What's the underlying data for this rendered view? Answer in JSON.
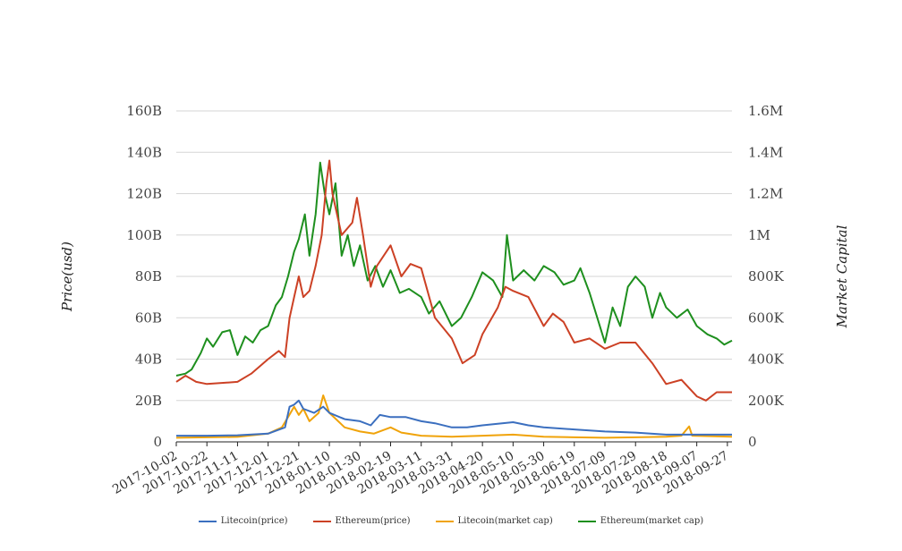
{
  "chart_data": {
    "type": "line",
    "title": "",
    "x_start": "2017-10-02",
    "x_end": "2018-09-30",
    "x_ticks": [
      "2017-10-02",
      "2017-10-22",
      "2017-11-11",
      "2017-12-01",
      "2017-12-21",
      "2018-01-10",
      "2018-01-30",
      "2018-02-19",
      "2018-03-11",
      "2018-03-31",
      "2018-04-20",
      "2018-05-10",
      "2018-05-30",
      "2018-06-19",
      "2018-07-09",
      "2018-07-29",
      "2018-08-18",
      "2018-09-07",
      "2018-09-27"
    ],
    "y_left": {
      "label": "Price(usd)",
      "ylim": [
        0,
        160000000000
      ],
      "ticks": [
        "0",
        "20B",
        "40B",
        "60B",
        "80B",
        "100B",
        "120B",
        "140B",
        "160B"
      ]
    },
    "y_right": {
      "label": "Market Capital",
      "ylim": [
        0,
        1600000
      ],
      "ticks": [
        "0",
        "200K",
        "400K",
        "600K",
        "800K",
        "1M",
        "1.2M",
        "1.4M",
        "1.6M"
      ]
    },
    "grid": true,
    "legend_position": "bottom",
    "series": [
      {
        "name": "Litecoin(price)",
        "color": "#3b6fbf",
        "axis": "left",
        "points": [
          [
            "2017-10-02",
            3
          ],
          [
            "2017-10-22",
            3
          ],
          [
            "2017-11-11",
            3.2
          ],
          [
            "2017-12-01",
            4
          ],
          [
            "2017-12-12",
            7
          ],
          [
            "2017-12-15",
            17
          ],
          [
            "2017-12-18",
            18
          ],
          [
            "2017-12-21",
            20
          ],
          [
            "2017-12-24",
            16
          ],
          [
            "2017-12-31",
            14
          ],
          [
            "2018-01-06",
            17
          ],
          [
            "2018-01-10",
            14
          ],
          [
            "2018-01-20",
            11
          ],
          [
            "2018-01-30",
            10
          ],
          [
            "2018-02-06",
            8
          ],
          [
            "2018-02-12",
            13
          ],
          [
            "2018-02-19",
            12
          ],
          [
            "2018-03-01",
            12
          ],
          [
            "2018-03-11",
            10
          ],
          [
            "2018-03-20",
            9
          ],
          [
            "2018-03-31",
            7
          ],
          [
            "2018-04-10",
            7
          ],
          [
            "2018-04-20",
            8
          ],
          [
            "2018-05-10",
            9.5
          ],
          [
            "2018-05-20",
            8
          ],
          [
            "2018-05-30",
            7
          ],
          [
            "2018-06-19",
            6
          ],
          [
            "2018-07-09",
            5
          ],
          [
            "2018-07-29",
            4.5
          ],
          [
            "2018-08-18",
            3.5
          ],
          [
            "2018-09-07",
            3.5
          ],
          [
            "2018-09-30",
            3.5
          ]
        ]
      },
      {
        "name": "Ethereum(price)",
        "color": "#cc4125",
        "axis": "left",
        "points": [
          [
            "2017-10-02",
            29
          ],
          [
            "2017-10-08",
            32
          ],
          [
            "2017-10-15",
            29
          ],
          [
            "2017-10-22",
            28
          ],
          [
            "2017-11-11",
            29
          ],
          [
            "2017-11-20",
            33
          ],
          [
            "2017-12-01",
            40
          ],
          [
            "2017-12-08",
            44
          ],
          [
            "2017-12-12",
            41
          ],
          [
            "2017-12-15",
            60
          ],
          [
            "2017-12-18",
            70
          ],
          [
            "2017-12-21",
            80
          ],
          [
            "2017-12-24",
            70
          ],
          [
            "2017-12-28",
            73
          ],
          [
            "2018-01-01",
            85
          ],
          [
            "2018-01-05",
            100
          ],
          [
            "2018-01-08",
            125
          ],
          [
            "2018-01-10",
            136
          ],
          [
            "2018-01-12",
            120
          ],
          [
            "2018-01-18",
            100
          ],
          [
            "2018-01-25",
            106
          ],
          [
            "2018-01-28",
            118
          ],
          [
            "2018-02-01",
            100
          ],
          [
            "2018-02-06",
            75
          ],
          [
            "2018-02-10",
            85
          ],
          [
            "2018-02-19",
            95
          ],
          [
            "2018-02-26",
            80
          ],
          [
            "2018-03-04",
            86
          ],
          [
            "2018-03-11",
            84
          ],
          [
            "2018-03-20",
            60
          ],
          [
            "2018-03-31",
            50
          ],
          [
            "2018-04-07",
            38
          ],
          [
            "2018-04-15",
            42
          ],
          [
            "2018-04-20",
            52
          ],
          [
            "2018-04-30",
            65
          ],
          [
            "2018-05-05",
            75
          ],
          [
            "2018-05-10",
            73
          ],
          [
            "2018-05-20",
            70
          ],
          [
            "2018-05-30",
            56
          ],
          [
            "2018-06-05",
            62
          ],
          [
            "2018-06-12",
            58
          ],
          [
            "2018-06-19",
            48
          ],
          [
            "2018-06-29",
            50
          ],
          [
            "2018-07-09",
            45
          ],
          [
            "2018-07-19",
            48
          ],
          [
            "2018-07-29",
            48
          ],
          [
            "2018-08-09",
            38
          ],
          [
            "2018-08-18",
            28
          ],
          [
            "2018-08-28",
            30
          ],
          [
            "2018-09-07",
            22
          ],
          [
            "2018-09-13",
            20
          ],
          [
            "2018-09-20",
            24
          ],
          [
            "2018-09-30",
            24
          ]
        ]
      },
      {
        "name": "Litecoin(market cap)",
        "color": "#f0a30a",
        "axis": "right",
        "points": [
          [
            "2017-10-02",
            20000
          ],
          [
            "2017-10-22",
            22000
          ],
          [
            "2017-11-11",
            24000
          ],
          [
            "2017-12-01",
            40000
          ],
          [
            "2017-12-10",
            70000
          ],
          [
            "2017-12-14",
            120000
          ],
          [
            "2017-12-18",
            170000
          ],
          [
            "2017-12-21",
            130000
          ],
          [
            "2017-12-24",
            160000
          ],
          [
            "2017-12-28",
            100000
          ],
          [
            "2018-01-03",
            140000
          ],
          [
            "2018-01-06",
            225000
          ],
          [
            "2018-01-10",
            140000
          ],
          [
            "2018-01-20",
            70000
          ],
          [
            "2018-01-30",
            50000
          ],
          [
            "2018-02-08",
            40000
          ],
          [
            "2018-02-19",
            70000
          ],
          [
            "2018-02-26",
            45000
          ],
          [
            "2018-03-11",
            30000
          ],
          [
            "2018-03-31",
            25000
          ],
          [
            "2018-04-20",
            30000
          ],
          [
            "2018-05-10",
            35000
          ],
          [
            "2018-05-30",
            25000
          ],
          [
            "2018-06-19",
            22000
          ],
          [
            "2018-07-09",
            20000
          ],
          [
            "2018-07-29",
            22000
          ],
          [
            "2018-08-18",
            25000
          ],
          [
            "2018-08-28",
            30000
          ],
          [
            "2018-09-02",
            75000
          ],
          [
            "2018-09-04",
            30000
          ],
          [
            "2018-09-30",
            25000
          ]
        ]
      },
      {
        "name": "Ethereum(market cap)",
        "color": "#1e8f1e",
        "axis": "right",
        "points": [
          [
            "2017-10-02",
            320000
          ],
          [
            "2017-10-08",
            330000
          ],
          [
            "2017-10-12",
            350000
          ],
          [
            "2017-10-18",
            430000
          ],
          [
            "2017-10-22",
            500000
          ],
          [
            "2017-10-26",
            460000
          ],
          [
            "2017-11-01",
            530000
          ],
          [
            "2017-11-06",
            540000
          ],
          [
            "2017-11-11",
            420000
          ],
          [
            "2017-11-16",
            510000
          ],
          [
            "2017-11-21",
            480000
          ],
          [
            "2017-11-26",
            540000
          ],
          [
            "2017-12-01",
            560000
          ],
          [
            "2017-12-06",
            660000
          ],
          [
            "2017-12-10",
            700000
          ],
          [
            "2017-12-14",
            800000
          ],
          [
            "2017-12-18",
            920000
          ],
          [
            "2017-12-21",
            980000
          ],
          [
            "2017-12-25",
            1100000
          ],
          [
            "2017-12-28",
            900000
          ],
          [
            "2018-01-01",
            1100000
          ],
          [
            "2018-01-04",
            1350000
          ],
          [
            "2018-01-07",
            1200000
          ],
          [
            "2018-01-10",
            1100000
          ],
          [
            "2018-01-14",
            1250000
          ],
          [
            "2018-01-18",
            900000
          ],
          [
            "2018-01-22",
            1000000
          ],
          [
            "2018-01-26",
            850000
          ],
          [
            "2018-01-30",
            950000
          ],
          [
            "2018-02-04",
            780000
          ],
          [
            "2018-02-09",
            850000
          ],
          [
            "2018-02-14",
            750000
          ],
          [
            "2018-02-19",
            830000
          ],
          [
            "2018-02-25",
            720000
          ],
          [
            "2018-03-03",
            740000
          ],
          [
            "2018-03-11",
            700000
          ],
          [
            "2018-03-16",
            620000
          ],
          [
            "2018-03-23",
            680000
          ],
          [
            "2018-03-31",
            560000
          ],
          [
            "2018-04-06",
            600000
          ],
          [
            "2018-04-13",
            700000
          ],
          [
            "2018-04-20",
            820000
          ],
          [
            "2018-04-27",
            780000
          ],
          [
            "2018-05-03",
            700000
          ],
          [
            "2018-05-06",
            1000000
          ],
          [
            "2018-05-10",
            780000
          ],
          [
            "2018-05-17",
            830000
          ],
          [
            "2018-05-24",
            780000
          ],
          [
            "2018-05-30",
            850000
          ],
          [
            "2018-06-06",
            820000
          ],
          [
            "2018-06-12",
            760000
          ],
          [
            "2018-06-19",
            780000
          ],
          [
            "2018-06-23",
            840000
          ],
          [
            "2018-06-29",
            720000
          ],
          [
            "2018-07-04",
            600000
          ],
          [
            "2018-07-09",
            480000
          ],
          [
            "2018-07-14",
            650000
          ],
          [
            "2018-07-19",
            560000
          ],
          [
            "2018-07-24",
            750000
          ],
          [
            "2018-07-29",
            800000
          ],
          [
            "2018-08-04",
            750000
          ],
          [
            "2018-08-09",
            600000
          ],
          [
            "2018-08-14",
            720000
          ],
          [
            "2018-08-18",
            650000
          ],
          [
            "2018-08-25",
            600000
          ],
          [
            "2018-09-01",
            640000
          ],
          [
            "2018-09-07",
            560000
          ],
          [
            "2018-09-14",
            520000
          ],
          [
            "2018-09-20",
            500000
          ],
          [
            "2018-09-25",
            470000
          ],
          [
            "2018-09-30",
            490000
          ]
        ]
      }
    ]
  }
}
